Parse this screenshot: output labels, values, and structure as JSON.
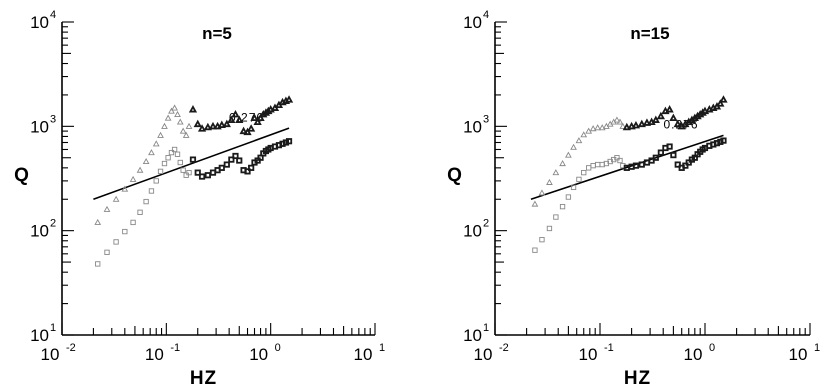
{
  "chart_data": [
    {
      "type": "scatter",
      "title": "n=5",
      "xlabel": "HZ",
      "ylabel": "Q",
      "xscale": "log",
      "yscale": "log",
      "xlim": [
        0.01,
        10
      ],
      "ylim": [
        10,
        10000
      ],
      "x_ticks": [
        {
          "base": "10",
          "exp": "-2"
        },
        {
          "base": "10",
          "exp": "-1"
        },
        {
          "base": "10",
          "exp": "0"
        },
        {
          "base": "10",
          "exp": "1"
        }
      ],
      "y_ticks": [
        {
          "base": "10",
          "exp": "1"
        },
        {
          "base": "10",
          "exp": "2"
        },
        {
          "base": "10",
          "exp": "3"
        },
        {
          "base": "10",
          "exp": "4"
        }
      ],
      "grid": false,
      "series": [
        {
          "marker": "triangle",
          "x": [
            0.022,
            0.027,
            0.033,
            0.04,
            0.048,
            0.056,
            0.064,
            0.072,
            0.08,
            0.088,
            0.096,
            0.104,
            0.112,
            0.12,
            0.128,
            0.136,
            0.145,
            0.155,
            0.165,
            0.18,
            0.2,
            0.22,
            0.25,
            0.28,
            0.31,
            0.34,
            0.38,
            0.42,
            0.46,
            0.5,
            0.55,
            0.6,
            0.65,
            0.7,
            0.75,
            0.8,
            0.85,
            0.9,
            0.95,
            1.0,
            1.1,
            1.2,
            1.3,
            1.4,
            1.5
          ],
          "y": [
            120,
            160,
            200,
            250,
            310,
            380,
            460,
            560,
            680,
            820,
            1000,
            1200,
            1400,
            1500,
            1300,
            1100,
            900,
            820,
            1000,
            1450,
            1050,
            950,
            980,
            1000,
            1000,
            1030,
            1050,
            1150,
            1300,
            1150,
            900,
            880,
            950,
            1200,
            1100,
            1200,
            1300,
            1350,
            1400,
            1450,
            1500,
            1600,
            1700,
            1750,
            1800
          ]
        },
        {
          "marker": "square",
          "x": [
            0.022,
            0.027,
            0.033,
            0.04,
            0.048,
            0.056,
            0.064,
            0.072,
            0.08,
            0.088,
            0.096,
            0.104,
            0.112,
            0.12,
            0.128,
            0.136,
            0.145,
            0.155,
            0.165,
            0.18,
            0.2,
            0.22,
            0.25,
            0.28,
            0.31,
            0.34,
            0.38,
            0.42,
            0.46,
            0.5,
            0.55,
            0.6,
            0.65,
            0.7,
            0.75,
            0.8,
            0.85,
            0.9,
            0.95,
            1.0,
            1.1,
            1.2,
            1.3,
            1.4,
            1.5
          ],
          "y": [
            48,
            62,
            78,
            98,
            120,
            150,
            190,
            240,
            300,
            370,
            440,
            500,
            560,
            600,
            540,
            450,
            380,
            340,
            360,
            480,
            360,
            330,
            340,
            360,
            380,
            400,
            430,
            480,
            520,
            470,
            380,
            370,
            400,
            450,
            470,
            500,
            550,
            580,
            600,
            620,
            640,
            660,
            680,
            700,
            720
          ]
        }
      ],
      "fit_line": {
        "x": [
          0.02,
          1.5
        ],
        "y": [
          200,
          960
        ],
        "label": "0.276"
      }
    },
    {
      "type": "scatter",
      "title": "n=15",
      "xlabel": "HZ",
      "ylabel": "Q",
      "xscale": "log",
      "yscale": "log",
      "xlim": [
        0.01,
        10
      ],
      "ylim": [
        10,
        10000
      ],
      "x_ticks": [
        {
          "base": "10",
          "exp": "-2"
        },
        {
          "base": "10",
          "exp": "-1"
        },
        {
          "base": "10",
          "exp": "0"
        },
        {
          "base": "10",
          "exp": "1"
        }
      ],
      "y_ticks": [
        {
          "base": "10",
          "exp": "1"
        },
        {
          "base": "10",
          "exp": "2"
        },
        {
          "base": "10",
          "exp": "3"
        },
        {
          "base": "10",
          "exp": "4"
        }
      ],
      "grid": false,
      "series": [
        {
          "marker": "triangle",
          "x": [
            0.024,
            0.028,
            0.033,
            0.038,
            0.044,
            0.05,
            0.056,
            0.063,
            0.07,
            0.078,
            0.086,
            0.095,
            0.105,
            0.115,
            0.125,
            0.135,
            0.145,
            0.155,
            0.165,
            0.18,
            0.2,
            0.22,
            0.25,
            0.28,
            0.31,
            0.34,
            0.38,
            0.42,
            0.46,
            0.5,
            0.55,
            0.6,
            0.65,
            0.7,
            0.75,
            0.8,
            0.85,
            0.9,
            0.95,
            1.0,
            1.1,
            1.2,
            1.3,
            1.4,
            1.5
          ],
          "y": [
            180,
            230,
            290,
            360,
            440,
            530,
            630,
            730,
            830,
            900,
            950,
            970,
            970,
            1000,
            1050,
            1100,
            1150,
            1100,
            1000,
            980,
            1000,
            1020,
            1050,
            1080,
            1100,
            1150,
            1250,
            1400,
            1450,
            1200,
            1050,
            1000,
            1050,
            1100,
            1150,
            1200,
            1250,
            1300,
            1350,
            1400,
            1450,
            1500,
            1550,
            1650,
            1800
          ]
        },
        {
          "marker": "square",
          "x": [
            0.024,
            0.028,
            0.033,
            0.038,
            0.044,
            0.05,
            0.056,
            0.063,
            0.07,
            0.078,
            0.086,
            0.095,
            0.105,
            0.115,
            0.125,
            0.135,
            0.145,
            0.155,
            0.165,
            0.18,
            0.2,
            0.22,
            0.25,
            0.28,
            0.31,
            0.34,
            0.38,
            0.42,
            0.46,
            0.5,
            0.55,
            0.6,
            0.65,
            0.7,
            0.75,
            0.8,
            0.85,
            0.9,
            0.95,
            1.0,
            1.1,
            1.2,
            1.3,
            1.4,
            1.5
          ],
          "y": [
            65,
            82,
            105,
            135,
            170,
            210,
            260,
            310,
            360,
            400,
            420,
            430,
            430,
            440,
            460,
            480,
            500,
            470,
            420,
            400,
            410,
            420,
            430,
            450,
            470,
            500,
            560,
            620,
            640,
            530,
            430,
            400,
            420,
            450,
            480,
            500,
            540,
            570,
            600,
            620,
            650,
            670,
            690,
            710,
            730
          ]
        }
      ],
      "fit_line": {
        "x": [
          0.022,
          1.5
        ],
        "y": [
          200,
          820
        ],
        "label": "0.276"
      }
    }
  ]
}
